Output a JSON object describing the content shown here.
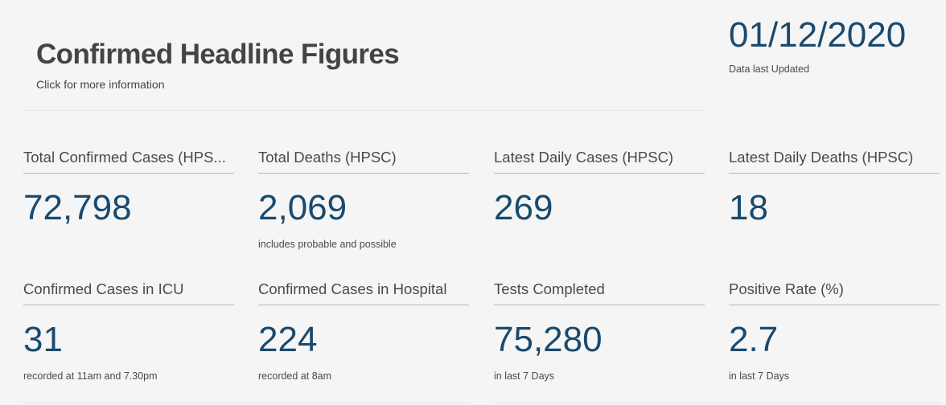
{
  "header": {
    "title": "Confirmed Headline Figures",
    "subtitle": "Click for more information"
  },
  "update": {
    "date": "01/12/2020",
    "label": "Data last Updated"
  },
  "colors": {
    "value": "#1a4a6e",
    "text": "#4a4a4a",
    "background": "#f5f5f5"
  },
  "stats": [
    {
      "label": "Total Confirmed Cases (HPS...",
      "value": "72,798",
      "note": ""
    },
    {
      "label": "Total Deaths (HPSC)",
      "value": "2,069",
      "note": "includes probable and possible"
    },
    {
      "label": "Latest Daily Cases (HPSC)",
      "value": "269",
      "note": ""
    },
    {
      "label": "Latest Daily Deaths (HPSC)",
      "value": "18",
      "note": ""
    },
    {
      "label": "Confirmed Cases in ICU",
      "value": "31",
      "note": "recorded at 11am and 7.30pm"
    },
    {
      "label": "Confirmed Cases in Hospital",
      "value": "224",
      "note": "recorded at 8am"
    },
    {
      "label": "Tests Completed",
      "value": "75,280",
      "note": "in last 7 Days"
    },
    {
      "label": "Positive Rate (%)",
      "value": "2.7",
      "note": "in last 7 Days"
    }
  ]
}
